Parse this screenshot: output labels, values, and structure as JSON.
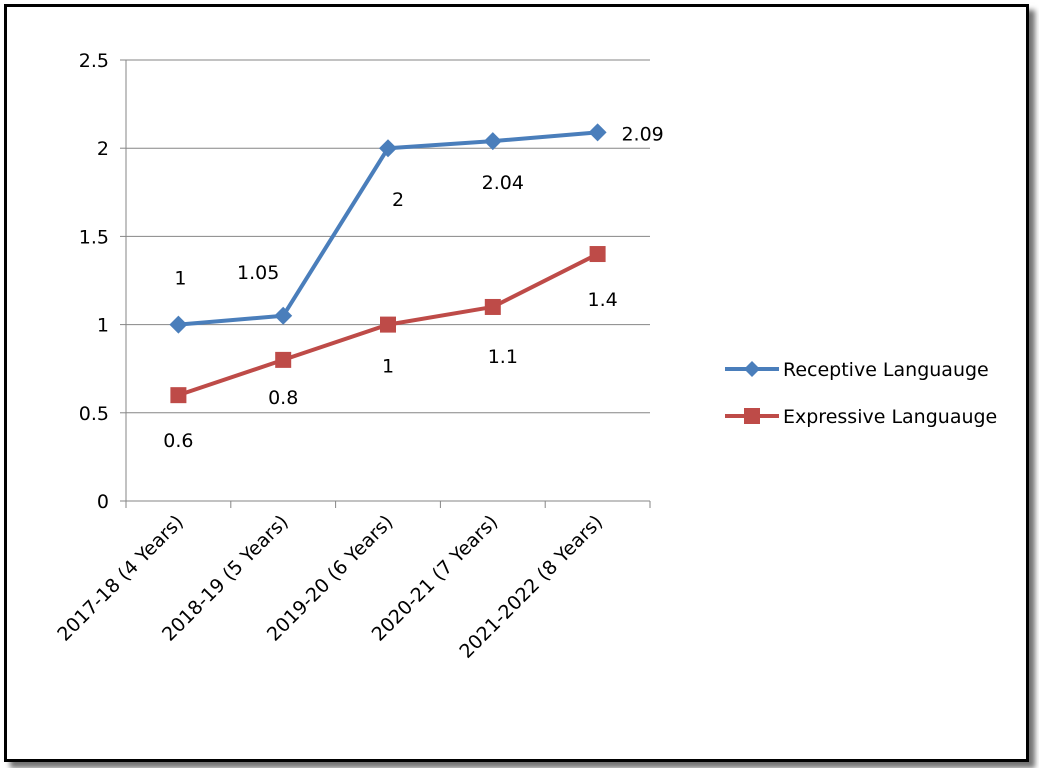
{
  "chart_data": {
    "type": "line",
    "title": "",
    "xlabel": "",
    "ylabel": "",
    "categories": [
      "2017-18 (4 Years)",
      "2018-19 (5 Years)",
      "2019-20 (6 Years)",
      "2020-21 (7 Years)",
      "2021-2022 (8 Years)"
    ],
    "y_ticks": [
      "0",
      "0.5",
      "1",
      "1.5",
      "2",
      "2.5"
    ],
    "ylim": [
      0,
      2.5
    ],
    "grid": true,
    "legend_position": "right",
    "series": [
      {
        "name": "Receptive Languauge",
        "values": [
          1,
          1.05,
          2,
          2.04,
          2.09
        ],
        "data_labels": [
          "1",
          "1.05",
          "2",
          "2.04",
          "2.09"
        ],
        "color": "#4a7ebb",
        "marker": "diamond"
      },
      {
        "name": "Expressive Languauge",
        "values": [
          0.6,
          0.8,
          1,
          1.1,
          1.4
        ],
        "data_labels": [
          "0.6",
          "0.8",
          "1",
          "1.1",
          "1.4"
        ],
        "color": "#be4b48",
        "marker": "square"
      }
    ]
  }
}
